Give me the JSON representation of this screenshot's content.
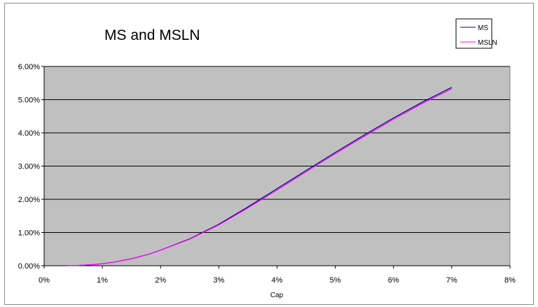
{
  "chart_data": {
    "type": "line",
    "title": "MS and MSLN",
    "xlabel": "Cap",
    "ylabel": "",
    "xlim": [
      0,
      0.08
    ],
    "ylim": [
      0,
      0.06
    ],
    "x_ticks": [
      "0%",
      "1%",
      "2%",
      "3%",
      "4%",
      "5%",
      "6%",
      "7%",
      "8%"
    ],
    "y_ticks": [
      "0.00%",
      "1.00%",
      "2.00%",
      "3.00%",
      "4.00%",
      "5.00%",
      "6.00%"
    ],
    "grid": "horizontal",
    "plot_background": "#c0c0c0",
    "legend_position": "top-right",
    "x": [
      0.004,
      0.006,
      0.008,
      0.01,
      0.012,
      0.015,
      0.018,
      0.02,
      0.025,
      0.03,
      0.035,
      0.04,
      0.045,
      0.05,
      0.055,
      0.06,
      0.065,
      0.07
    ],
    "series": [
      {
        "name": "MS",
        "color": "#000080",
        "values": [
          0.0,
          0.0001,
          0.0003,
          0.0006,
          0.0011,
          0.0021,
          0.0035,
          0.0047,
          0.0081,
          0.0125,
          0.0177,
          0.0232,
          0.0287,
          0.0341,
          0.0394,
          0.0445,
          0.0493,
          0.0537
        ]
      },
      {
        "name": "MSLN",
        "color": "#ff00ff",
        "values": [
          0.0,
          0.0001,
          0.0003,
          0.0006,
          0.0011,
          0.0021,
          0.0035,
          0.0047,
          0.008,
          0.0123,
          0.0174,
          0.0228,
          0.0283,
          0.0337,
          0.039,
          0.0441,
          0.0489,
          0.0533
        ]
      }
    ]
  }
}
